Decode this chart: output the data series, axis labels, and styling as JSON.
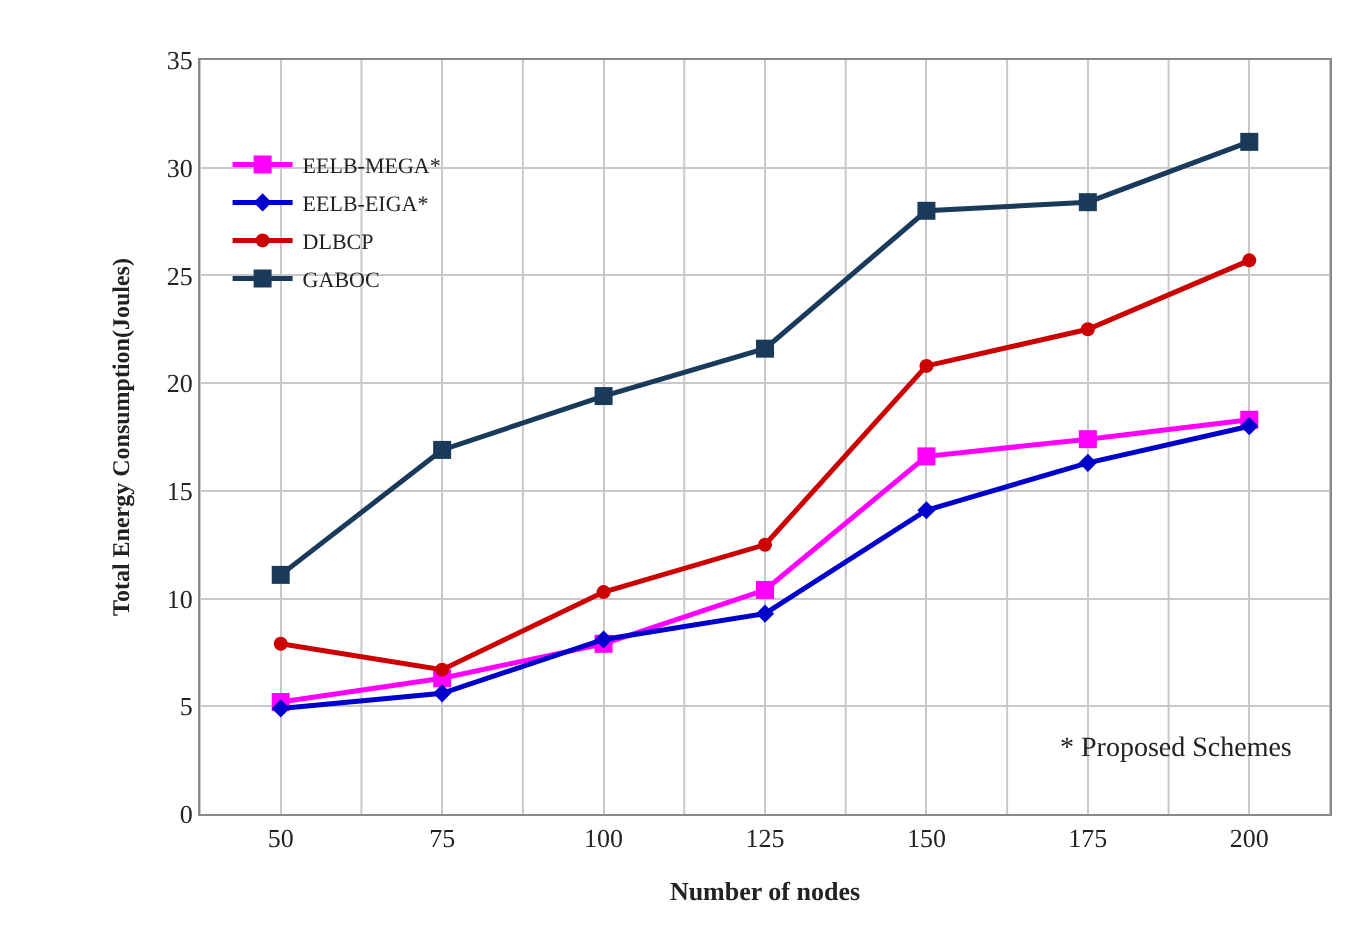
{
  "chart_data": {
    "type": "line",
    "xlabel": "Number of nodes",
    "ylabel": "Total Energy Consumption(Joules)",
    "categories": [
      "50",
      "75",
      "100",
      "125",
      "150",
      "175",
      "200"
    ],
    "series": [
      {
        "name": "EELB-MEGA*",
        "color": "#ff00ff",
        "marker": "square",
        "values": [
          5.2,
          6.3,
          7.9,
          10.4,
          16.6,
          17.4,
          18.3
        ]
      },
      {
        "name": "EELB-EIGA*",
        "color": "#0000cc",
        "marker": "diamond",
        "values": [
          4.9,
          5.6,
          8.1,
          9.3,
          14.1,
          16.3,
          18.0
        ]
      },
      {
        "name": "DLBCP",
        "color": "#cc0000",
        "marker": "circle",
        "values": [
          7.9,
          6.7,
          10.3,
          12.5,
          20.8,
          22.5,
          25.7
        ]
      },
      {
        "name": "GABOC",
        "color": "#1a3a5c",
        "marker": "square",
        "values": [
          11.1,
          16.9,
          19.4,
          21.6,
          28.0,
          28.4,
          31.2
        ]
      }
    ],
    "ylim": [
      0,
      35
    ],
    "yticks": [
      0,
      5,
      10,
      15,
      20,
      25,
      30,
      35
    ],
    "grid": true,
    "legend": "top left",
    "line_style": "solid",
    "annotations": [
      "* Proposed Schemes"
    ]
  }
}
